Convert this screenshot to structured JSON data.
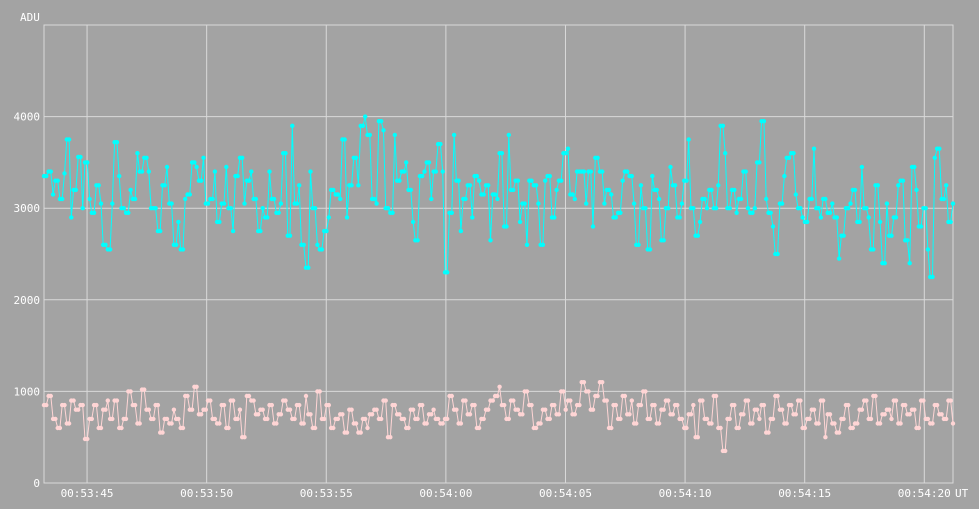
{
  "chart_data": {
    "type": "line",
    "title": "",
    "ylabel": "ADU",
    "xlabel": "UT",
    "ylim": [
      0,
      5000
    ],
    "xlim": [
      "00:53:43.200",
      "00:54:21.200"
    ],
    "y_ticks": [
      "0",
      "1000",
      "2000",
      "3000",
      "4000"
    ],
    "x_ticks": [
      "00:53:45",
      "00:53:50",
      "00:53:55",
      "00:54:00",
      "00:54:05",
      "00:54:10",
      "00:54:15",
      "00:54:20"
    ],
    "grid": true,
    "colors": {
      "background": "#a3a3a3",
      "grid": "#d9d9d9",
      "upper_series": "#00ffff",
      "lower_series": "#ffd5d5"
    },
    "series": [
      {
        "color": "#00ffff",
        "mean": 3100,
        "samples": 400,
        "start": "00:53:43.200",
        "end": "00:54:21.200",
        "values_excerpt": [
          3350,
          3400,
          3150,
          3300,
          3100,
          3380,
          3750,
          2900,
          3200,
          3560,
          3000,
          3500,
          3100,
          2950,
          3250,
          3050,
          2600,
          2550,
          3050,
          3720,
          3350,
          3000,
          2950,
          3200,
          3100,
          3600,
          3400,
          3550,
          3400,
          3000,
          3000,
          2750,
          3250,
          3450,
          3050,
          2600,
          2850,
          2550,
          3100,
          3150,
          3500,
          3450,
          3300,
          3550,
          3050,
          3100,
          3400,
          2850,
          3050,
          3450,
          3000,
          2750,
          3350,
          3550,
          3050,
          3300,
          3400,
          3100,
          2750,
          3000,
          2900,
          3400,
          3100,
          2950,
          3050,
          3600,
          2700,
          3900,
          3050,
          3250,
          2600,
          2350,
          3400,
          3000,
          2600,
          2550,
          2750,
          2900,
          3200,
          3150,
          3100,
          3750,
          2900,
          3250,
          3550,
          3250,
          3900,
          4000,
          3800,
          3100,
          3050,
          3950,
          3850,
          3000,
          2950,
          3800,
          3300,
          3400,
          3500,
          3200,
          2850,
          2650,
          3350,
          3400,
          3500,
          3100,
          3400,
          3700,
          3400,
          2300,
          2950,
          3800,
          3300,
          2750,
          3100,
          3250,
          2900,
          3350,
          3300,
          3150,
          3250,
          2650,
          3150,
          3100,
          3600,
          2800,
          3800,
          3200,
          3300,
          2850,
          3050,
          2600,
          3300,
          3250,
          3050,
          2600,
          3300,
          3350,
          2900,
          3200,
          3300,
          3600,
          3650,
          3150,
          3100,
          3400,
          3400,
          3050,
          3400,
          2800,
          3550,
          3400,
          3050,
          3200,
          3150,
          2900,
          2950,
          3300,
          3400,
          3350,
          3050,
          2600,
          3250,
          3000,
          2550,
          3350,
          3200,
          3100,
          2650,
          3000,
          3450,
          3250,
          2900,
          3050,
          3300,
          3750,
          3000,
          2700,
          2850,
          3100,
          3000,
          3200,
          3000,
          3250,
          3900,
          3600,
          3000,
          3200,
          2950,
          3100,
          3400,
          3000,
          2950,
          3000,
          3500,
          3950,
          3100,
          2950,
          2800,
          2500,
          3050,
          3350,
          3550,
          3600,
          3150,
          3000,
          2900,
          2850,
          3100,
          3650,
          3000,
          2900,
          3100,
          2950,
          3050,
          2900,
          2450,
          2700,
          3000,
          3050,
          3200,
          2850,
          3450,
          3000,
          2900,
          2550,
          3250,
          2850,
          2400,
          3050,
          2700,
          2900,
          3250,
          3300,
          2650,
          2400,
          3450,
          3200,
          2800,
          3000,
          2550,
          2250,
          3550,
          3650,
          3100,
          3250,
          2850,
          3050
        ]
      },
      {
        "color": "#ffd5d5",
        "mean": 760,
        "samples": 400,
        "start": "00:53:43.200",
        "end": "00:54:21.200",
        "values_excerpt": [
          850,
          950,
          700,
          600,
          850,
          650,
          900,
          800,
          850,
          480,
          700,
          850,
          600,
          800,
          900,
          700,
          900,
          600,
          700,
          1000,
          850,
          650,
          1020,
          800,
          700,
          850,
          550,
          700,
          650,
          800,
          700,
          600,
          950,
          800,
          1050,
          750,
          800,
          900,
          700,
          650,
          850,
          600,
          900,
          700,
          800,
          500,
          950,
          900,
          750,
          800,
          700,
          850,
          650,
          750,
          900,
          800,
          700,
          850,
          650,
          950,
          750,
          600,
          1000,
          700,
          850,
          600,
          700,
          750,
          550,
          800,
          650,
          550,
          700,
          600,
          750,
          800,
          700,
          900,
          500,
          850,
          750,
          700,
          600,
          800,
          700,
          850,
          650,
          750,
          800,
          700,
          650,
          700,
          950,
          800,
          650,
          900,
          750,
          850,
          600,
          700,
          800,
          900,
          950,
          1050,
          850,
          700,
          900,
          800,
          750,
          1000,
          850,
          600,
          650,
          800,
          700,
          850,
          750,
          1000,
          800,
          900,
          750,
          850,
          1100,
          1000,
          800,
          950,
          1100,
          900,
          600,
          850,
          700,
          950,
          750,
          900,
          650,
          850,
          1000,
          700,
          850,
          650,
          800,
          900,
          750,
          850,
          700,
          600,
          750,
          850,
          500,
          900,
          700,
          650,
          950,
          600,
          350,
          700,
          850,
          600,
          750,
          900,
          650,
          800,
          700,
          850,
          550,
          700,
          950,
          800,
          650,
          850,
          750,
          900,
          600,
          700,
          800,
          650,
          900,
          500,
          750,
          650,
          550,
          700,
          850,
          600,
          650,
          800,
          900,
          700,
          950,
          650,
          750,
          800,
          700,
          900,
          650,
          850,
          750,
          800,
          600,
          900,
          700,
          650,
          850,
          750,
          700,
          900,
          650
        ]
      }
    ]
  }
}
